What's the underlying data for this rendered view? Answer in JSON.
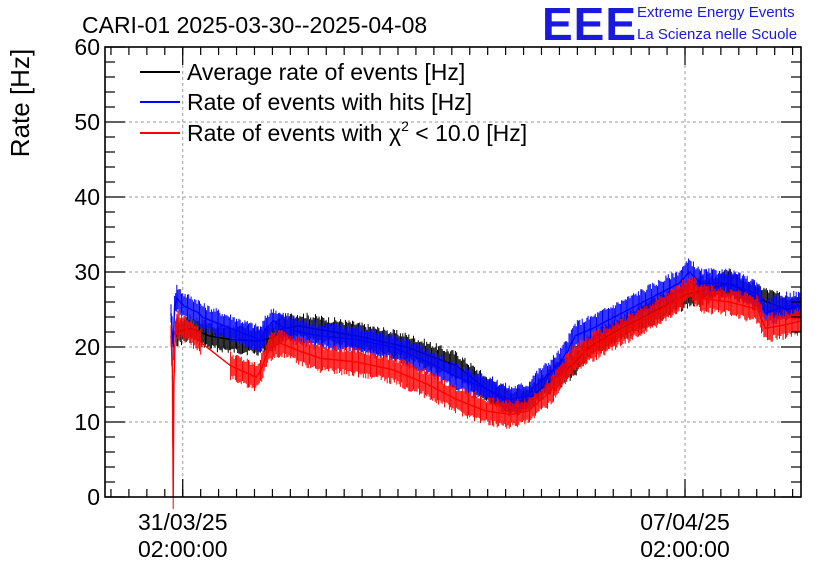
{
  "chart_data": {
    "type": "line",
    "title": "CARI-01 2025-03-30--2025-04-08",
    "ylabel": "Rate [Hz]",
    "xlabel": "",
    "ylim": [
      0,
      60
    ],
    "yticks": [
      0,
      10,
      20,
      30,
      40,
      50,
      60
    ],
    "x_unit": "days since 2025-03-30 00:00",
    "xlim": [
      0.0,
      9.7
    ],
    "xticks": [
      {
        "x": 1.0833,
        "label_line1": "31/03/25",
        "label_line2": "02:00:00"
      },
      {
        "x": 8.0833,
        "label_line1": "07/04/25",
        "label_line2": "02:00:00"
      }
    ],
    "grid": true,
    "legend_position": "top-left",
    "series": [
      {
        "name": "Average rate of events [Hz]",
        "color": "#000000",
        "points": [
          [
            1.0,
            22.0
          ],
          [
            1.2,
            22.5
          ],
          [
            1.45,
            21.5
          ],
          [
            1.75,
            21.0
          ],
          [
            2.15,
            20.8
          ],
          [
            2.35,
            21.3
          ],
          [
            2.45,
            22.4
          ],
          [
            2.7,
            22.8
          ],
          [
            3.5,
            21.5
          ],
          [
            4.2,
            20.0
          ],
          [
            4.9,
            17.5
          ],
          [
            5.3,
            14.5
          ],
          [
            5.65,
            12.5
          ],
          [
            5.9,
            13.0
          ],
          [
            6.2,
            15.5
          ],
          [
            6.5,
            17.5
          ],
          [
            6.75,
            20.0
          ],
          [
            7.1,
            22.0
          ],
          [
            7.6,
            24.5
          ],
          [
            8.1,
            27.0
          ],
          [
            8.7,
            28.5
          ],
          [
            9.1,
            26.5
          ],
          [
            9.5,
            25.0
          ],
          [
            9.7,
            25.5
          ]
        ]
      },
      {
        "name": "Rate of events with hits [Hz]",
        "color": "#0000ff",
        "points": [
          [
            0.92,
            24.5
          ],
          [
            0.95,
            20.0
          ],
          [
            0.97,
            25.5
          ],
          [
            1.0,
            26.5
          ],
          [
            1.1,
            25.5
          ],
          [
            1.2,
            25.0
          ],
          [
            1.3,
            24.6
          ],
          [
            1.35,
            24.0
          ],
          [
            1.75,
            22.5
          ],
          [
            2.1,
            21.2
          ],
          [
            2.15,
            20.8
          ],
          [
            2.25,
            22.5
          ],
          [
            2.35,
            23.5
          ],
          [
            2.45,
            22.8
          ],
          [
            2.7,
            22.0
          ],
          [
            3.0,
            21.5
          ],
          [
            3.5,
            21.0
          ],
          [
            4.0,
            20.0
          ],
          [
            4.5,
            18.0
          ],
          [
            4.9,
            16.0
          ],
          [
            5.3,
            14.5
          ],
          [
            5.65,
            13.0
          ],
          [
            5.9,
            13.5
          ],
          [
            5.95,
            14.5
          ],
          [
            6.2,
            16.5
          ],
          [
            6.35,
            18.0
          ],
          [
            6.45,
            19.5
          ],
          [
            6.55,
            21.5
          ],
          [
            6.8,
            22.5
          ],
          [
            7.1,
            24.0
          ],
          [
            7.6,
            26.5
          ],
          [
            8.0,
            28.5
          ],
          [
            8.15,
            30.0
          ],
          [
            8.3,
            28.5
          ],
          [
            8.7,
            28.5
          ],
          [
            9.1,
            27.0
          ],
          [
            9.2,
            24.5
          ],
          [
            9.5,
            25.5
          ],
          [
            9.7,
            25.5
          ]
        ]
      },
      {
        "name": "Rate of events with χ² < 10.0 [Hz]",
        "color": "#ff0000",
        "points": [
          [
            0.92,
            21.5
          ],
          [
            0.94,
            17.0
          ],
          [
            0.95,
            0.0
          ],
          [
            0.96,
            15.0
          ],
          [
            0.98,
            22.0
          ],
          [
            1.0,
            23.0
          ],
          [
            1.2,
            22.0
          ],
          [
            1.35,
            20.5
          ],
          [
            1.75,
            17.5
          ],
          [
            2.1,
            16.0
          ],
          [
            2.15,
            16.5
          ],
          [
            2.3,
            20.0
          ],
          [
            2.45,
            20.5
          ],
          [
            2.7,
            19.5
          ],
          [
            3.0,
            18.5
          ],
          [
            3.5,
            18.0
          ],
          [
            4.0,
            17.0
          ],
          [
            4.5,
            15.0
          ],
          [
            4.9,
            13.0
          ],
          [
            5.3,
            11.5
          ],
          [
            5.65,
            11.0
          ],
          [
            5.9,
            11.5
          ],
          [
            6.2,
            14.0
          ],
          [
            6.35,
            16.0
          ],
          [
            6.45,
            17.5
          ],
          [
            6.55,
            18.5
          ],
          [
            6.8,
            20.0
          ],
          [
            7.1,
            21.5
          ],
          [
            7.6,
            24.0
          ],
          [
            8.0,
            26.5
          ],
          [
            8.15,
            28.0
          ],
          [
            8.3,
            26.5
          ],
          [
            8.7,
            26.0
          ],
          [
            9.1,
            25.0
          ],
          [
            9.2,
            22.5
          ],
          [
            9.5,
            23.0
          ],
          [
            9.7,
            23.5
          ]
        ]
      }
    ],
    "legend_chi_prefix": "Rate of events with χ",
    "legend_chi_sup": "2",
    "legend_chi_suffix": " < 10.0 [Hz]"
  },
  "logo": {
    "letters": "EEE",
    "line1": "Extreme Energy Events",
    "line2": "La Scienza nelle Scuole",
    "color": "#1a1adc"
  }
}
